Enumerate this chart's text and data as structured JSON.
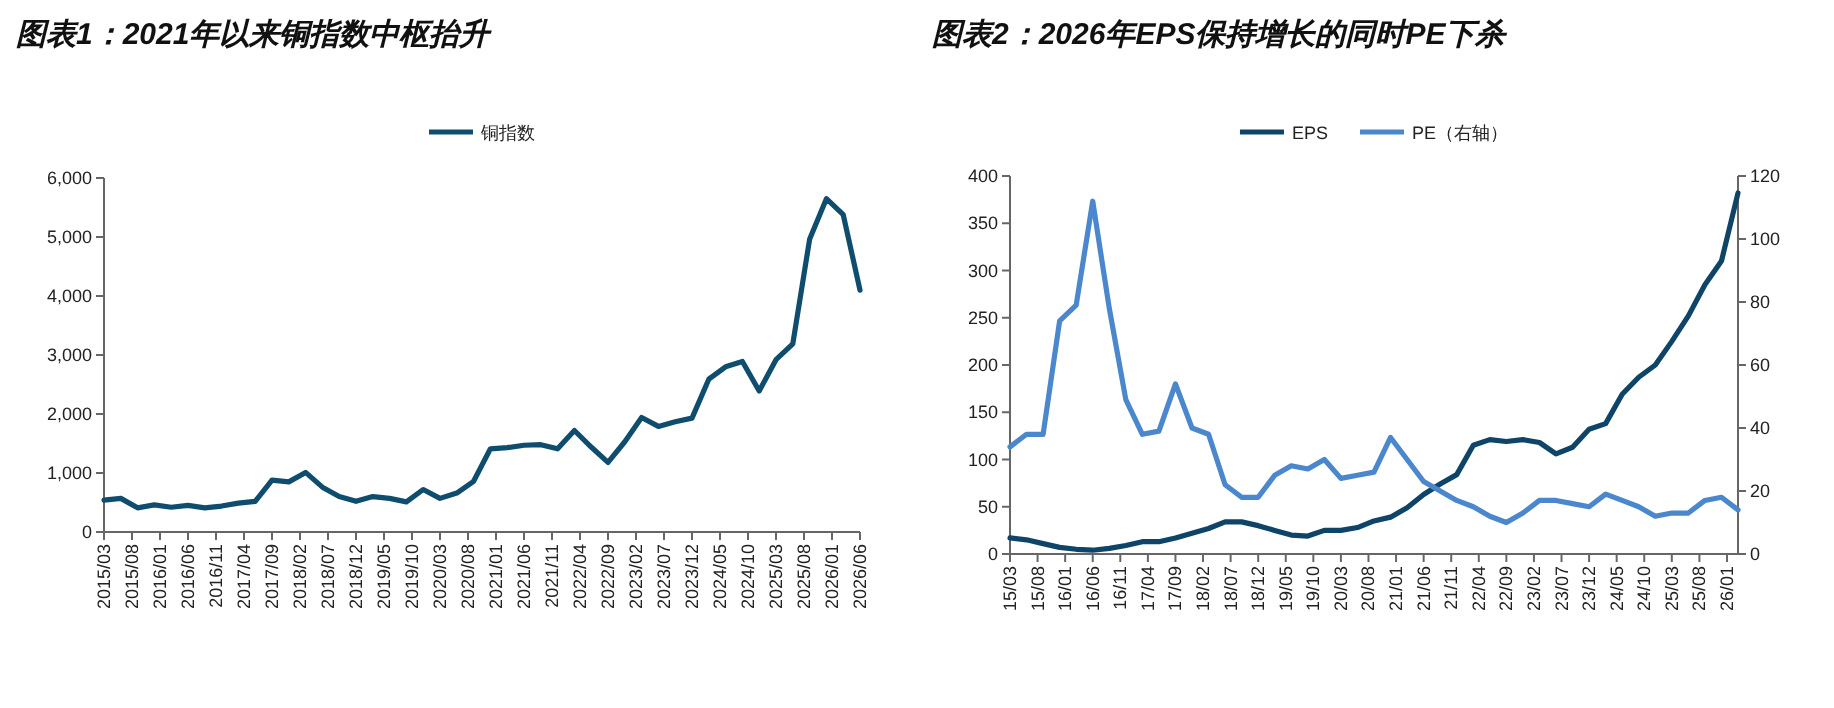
{
  "chart_data": [
    {
      "type": "line",
      "title": "图表1：2021年以来铜指数中枢抬升",
      "legend": "top",
      "x": [
        "2015-03",
        "2015-06",
        "2015-09",
        "2015-12",
        "2016-03",
        "2016-06",
        "2016-09",
        "2016-12",
        "2017-03",
        "2017-06",
        "2017-09",
        "2017-12",
        "2018-03",
        "2018-06",
        "2018-09",
        "2018-12",
        "2019-03",
        "2019-06",
        "2019-09",
        "2019-12",
        "2020-03",
        "2020-06",
        "2020-09",
        "2020-12",
        "2021-03",
        "2021-06",
        "2021-09",
        "2021-12",
        "2022-03",
        "2022-06",
        "2022-09",
        "2022-12",
        "2023-03",
        "2023-06",
        "2023-09",
        "2023-12",
        "2024-03",
        "2024-06",
        "2024-09",
        "2024-12",
        "2025-03",
        "2025-06",
        "2025-09",
        "2025-12",
        "2026-03",
        "2026-06"
      ],
      "series": [
        {
          "name": "铜指数",
          "color": "#0f4d6e",
          "values": [
            540,
            570,
            410,
            460,
            420,
            450,
            410,
            440,
            490,
            520,
            880,
            850,
            1010,
            760,
            600,
            520,
            600,
            570,
            510,
            720,
            570,
            660,
            860,
            1410,
            1430,
            1470,
            1480,
            1410,
            1720,
            1440,
            1180,
            1530,
            1940,
            1790,
            1870,
            1930,
            2590,
            2800,
            2890,
            2390,
            2920,
            3190,
            4960,
            5650,
            5380,
            4100
          ]
        }
      ],
      "xlim": [
        "2015-03",
        "2026-06"
      ],
      "xticks": [
        {
          "value": "2015-03",
          "label": "2015/03"
        },
        {
          "value": "2015-08",
          "label": "2015/08"
        },
        {
          "value": "2016-01",
          "label": "2016/01"
        },
        {
          "value": "2016-06",
          "label": "2016/06"
        },
        {
          "value": "2016-11",
          "label": "2016/11"
        },
        {
          "value": "2017-04",
          "label": "2017/04"
        },
        {
          "value": "2017-09",
          "label": "2017/09"
        },
        {
          "value": "2018-02",
          "label": "2018/02"
        },
        {
          "value": "2018-07",
          "label": "2018/07"
        },
        {
          "value": "2018-12",
          "label": "2018/12"
        },
        {
          "value": "2019-05",
          "label": "2019/05"
        },
        {
          "value": "2019-10",
          "label": "2019/10"
        },
        {
          "value": "2020-03",
          "label": "2020/03"
        },
        {
          "value": "2020-08",
          "label": "2020/08"
        },
        {
          "value": "2021-01",
          "label": "2021/01"
        },
        {
          "value": "2021-06",
          "label": "2021/06"
        },
        {
          "value": "2021-11",
          "label": "2021/11"
        },
        {
          "value": "2022-04",
          "label": "2022/04"
        },
        {
          "value": "2022-09",
          "label": "2022/09"
        },
        {
          "value": "2023-02",
          "label": "2023/02"
        },
        {
          "value": "2023-07",
          "label": "2023/07"
        },
        {
          "value": "2023-12",
          "label": "2023/12"
        },
        {
          "value": "2024-05",
          "label": "2024/05"
        },
        {
          "value": "2024-10",
          "label": "2024/10"
        },
        {
          "value": "2025-03",
          "label": "2025/03"
        },
        {
          "value": "2025-08",
          "label": "2025/08"
        },
        {
          "value": "2026-01",
          "label": "2026/01"
        },
        {
          "value": "2026-06",
          "label": "2026/06"
        }
      ],
      "ylim": [
        0,
        6000
      ],
      "yticks": [
        0,
        {
          "value": 1000,
          "label": "1,000"
        },
        {
          "value": 2000,
          "label": "2,000"
        },
        {
          "value": 3000,
          "label": "3,000"
        },
        {
          "value": 4000,
          "label": "4,000"
        },
        {
          "value": 5000,
          "label": "5,000"
        },
        {
          "value": 6000,
          "label": "6,000"
        }
      ]
    },
    {
      "type": "line",
      "title": "图表2：2026年EPS保持增长的同时PE下杀",
      "legend": "top",
      "x": [
        "2015-03",
        "2015-06",
        "2015-09",
        "2015-12",
        "2016-03",
        "2016-06",
        "2016-09",
        "2016-12",
        "2017-03",
        "2017-06",
        "2017-09",
        "2017-12",
        "2018-03",
        "2018-06",
        "2018-09",
        "2018-12",
        "2019-03",
        "2019-06",
        "2019-09",
        "2019-12",
        "2020-03",
        "2020-06",
        "2020-09",
        "2020-12",
        "2021-03",
        "2021-06",
        "2021-09",
        "2021-12",
        "2022-03",
        "2022-06",
        "2022-09",
        "2022-12",
        "2023-03",
        "2023-06",
        "2023-09",
        "2023-12",
        "2024-03",
        "2024-06",
        "2024-09",
        "2024-12",
        "2025-03",
        "2025-06",
        "2025-09",
        "2025-12",
        "2026-03"
      ],
      "series": [
        {
          "name": "EPS",
          "color": "#0d4468",
          "values": [
            17,
            15,
            11,
            7,
            5,
            4,
            6,
            9,
            13,
            13,
            17,
            22,
            27,
            34,
            34,
            30,
            25,
            20,
            19,
            25,
            25,
            28,
            35,
            39,
            49,
            63,
            74,
            84,
            115,
            121,
            119,
            121,
            118,
            106,
            113,
            132,
            138,
            169,
            187,
            200,
            225,
            252,
            285,
            310,
            382
          ]
        },
        {
          "name": "PE（右轴）",
          "color": "#4a87cc",
          "axis": "y2",
          "values": [
            34,
            38,
            38,
            74,
            79,
            112,
            78,
            49,
            38,
            39,
            54,
            40,
            38,
            22,
            18,
            18,
            25,
            28,
            27,
            30,
            24,
            25,
            26,
            37,
            30,
            23,
            20,
            17,
            15,
            12,
            10,
            13,
            17,
            17,
            16,
            15,
            19,
            17,
            15,
            12,
            13,
            13,
            17,
            18,
            14
          ]
        }
      ],
      "xlim": [
        "2015-03",
        "2026-03"
      ],
      "xticks": [
        {
          "value": "2015-03",
          "label": "15/03"
        },
        {
          "value": "2015-08",
          "label": "15/08"
        },
        {
          "value": "2016-01",
          "label": "16/01"
        },
        {
          "value": "2016-06",
          "label": "16/06"
        },
        {
          "value": "2016-11",
          "label": "16/11"
        },
        {
          "value": "2017-04",
          "label": "17/04"
        },
        {
          "value": "2017-09",
          "label": "17/09"
        },
        {
          "value": "2018-02",
          "label": "18/02"
        },
        {
          "value": "2018-07",
          "label": "18/07"
        },
        {
          "value": "2018-12",
          "label": "18/12"
        },
        {
          "value": "2019-05",
          "label": "19/05"
        },
        {
          "value": "2019-10",
          "label": "19/10"
        },
        {
          "value": "2020-03",
          "label": "20/03"
        },
        {
          "value": "2020-08",
          "label": "20/08"
        },
        {
          "value": "2021-01",
          "label": "21/01"
        },
        {
          "value": "2021-06",
          "label": "21/06"
        },
        {
          "value": "2021-11",
          "label": "21/11"
        },
        {
          "value": "2022-04",
          "label": "22/04"
        },
        {
          "value": "2022-09",
          "label": "22/09"
        },
        {
          "value": "2023-02",
          "label": "23/02"
        },
        {
          "value": "2023-07",
          "label": "23/07"
        },
        {
          "value": "2023-12",
          "label": "23/12"
        },
        {
          "value": "2024-05",
          "label": "24/05"
        },
        {
          "value": "2024-10",
          "label": "24/10"
        },
        {
          "value": "2025-03",
          "label": "25/03"
        },
        {
          "value": "2025-08",
          "label": "25/08"
        },
        {
          "value": "2026-01",
          "label": "26/01"
        }
      ],
      "ylim": [
        0,
        400
      ],
      "yticks": [
        0,
        50,
        100,
        150,
        200,
        250,
        300,
        350,
        400
      ],
      "y2lim": [
        0,
        120
      ],
      "y2ticks": [
        0,
        20,
        40,
        60,
        80,
        100,
        120
      ]
    }
  ]
}
